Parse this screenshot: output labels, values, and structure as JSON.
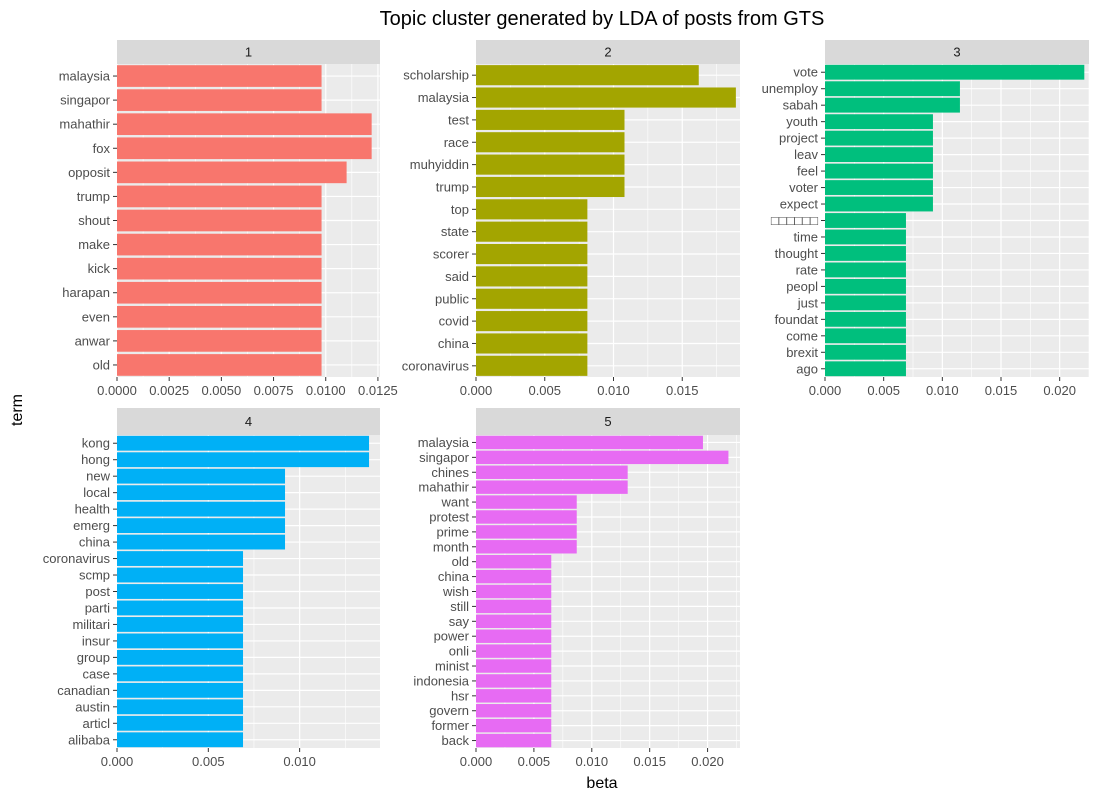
{
  "chart_data": {
    "type": "bar",
    "orientation": "horizontal",
    "title": "Topic cluster generated by LDA of posts from GTS",
    "xlabel": "beta",
    "ylabel": "term",
    "grid": true,
    "facets": [
      {
        "strip": "1",
        "color": "#F8766D",
        "xlim": [
          0,
          0.0126
        ],
        "ticks": [
          0,
          0.0025,
          0.005,
          0.0075,
          0.01,
          0.0125
        ],
        "tick_labels": [
          "0.0000",
          "0.0025",
          "0.0050",
          "0.0075",
          "0.0100",
          "0.0125"
        ],
        "terms": [
          "malaysia",
          "singapor",
          "mahathir",
          "fox",
          "opposit",
          "trump",
          "shout",
          "make",
          "kick",
          "harapan",
          "even",
          "anwar",
          "old"
        ],
        "values": [
          0.0098,
          0.0098,
          0.0122,
          0.0122,
          0.011,
          0.0098,
          0.0098,
          0.0098,
          0.0098,
          0.0098,
          0.0098,
          0.0098,
          0.0098
        ]
      },
      {
        "strip": "2",
        "color": "#A3A500",
        "xlim": [
          0,
          0.0192
        ],
        "ticks": [
          0,
          0.005,
          0.01,
          0.015
        ],
        "tick_labels": [
          "0.000",
          "0.005",
          "0.010",
          "0.015"
        ],
        "terms": [
          "scholarship",
          "malaysia",
          "test",
          "race",
          "muhyiddin",
          "trump",
          "top",
          "state",
          "scorer",
          "said",
          "public",
          "covid",
          "china",
          "coronavirus"
        ],
        "values": [
          0.0162,
          0.0189,
          0.0108,
          0.0108,
          0.0108,
          0.0108,
          0.0081,
          0.0081,
          0.0081,
          0.0081,
          0.0081,
          0.0081,
          0.0081,
          0.0081
        ]
      },
      {
        "strip": "3",
        "color": "#00BF7D",
        "xlim": [
          0,
          0.0225
        ],
        "ticks": [
          0,
          0.005,
          0.01,
          0.015,
          0.02
        ],
        "tick_labels": [
          "0.000",
          "0.005",
          "0.010",
          "0.015",
          "0.020"
        ],
        "terms": [
          "vote",
          "unemploy",
          "sabah",
          "youth",
          "project",
          "leav",
          "feel",
          "voter",
          "expect",
          "□□□□□□",
          "time",
          "thought",
          "rate",
          "peopl",
          "just",
          "foundat",
          "come",
          "brexit",
          "ago"
        ],
        "values": [
          0.0221,
          0.0115,
          0.0115,
          0.0092,
          0.0092,
          0.0092,
          0.0092,
          0.0092,
          0.0092,
          0.0069,
          0.0069,
          0.0069,
          0.0069,
          0.0069,
          0.0069,
          0.0069,
          0.0069,
          0.0069,
          0.0069
        ]
      },
      {
        "strip": "4",
        "color": "#00B0F6",
        "xlim": [
          0,
          0.0144
        ],
        "ticks": [
          0,
          0.005,
          0.01
        ],
        "tick_labels": [
          "0.000",
          "0.005",
          "0.010"
        ],
        "terms": [
          "kong",
          "hong",
          "new",
          "local",
          "health",
          "emerg",
          "china",
          "coronavirus",
          "scmp",
          "post",
          "parti",
          "militari",
          "insur",
          "group",
          "case",
          "canadian",
          "austin",
          "articl",
          "alibaba"
        ],
        "values": [
          0.0138,
          0.0138,
          0.0092,
          0.0092,
          0.0092,
          0.0092,
          0.0092,
          0.0069,
          0.0069,
          0.0069,
          0.0069,
          0.0069,
          0.0069,
          0.0069,
          0.0069,
          0.0069,
          0.0069,
          0.0069,
          0.0069
        ]
      },
      {
        "strip": "5",
        "color": "#E76BF3",
        "xlim": [
          0,
          0.0228
        ],
        "ticks": [
          0,
          0.005,
          0.01,
          0.015,
          0.02
        ],
        "tick_labels": [
          "0.000",
          "0.005",
          "0.010",
          "0.015",
          "0.020"
        ],
        "terms": [
          "malaysia",
          "singapor",
          "chines",
          "mahathir",
          "want",
          "protest",
          "prime",
          "month",
          "old",
          "china",
          "wish",
          "still",
          "say",
          "power",
          "onli",
          "minist",
          "indonesia",
          "hsr",
          "govern",
          "former",
          "back"
        ],
        "values": [
          0.0196,
          0.0218,
          0.0131,
          0.0131,
          0.0087,
          0.0087,
          0.0087,
          0.0087,
          0.0065,
          0.0065,
          0.0065,
          0.0065,
          0.0065,
          0.0065,
          0.0065,
          0.0065,
          0.0065,
          0.0065,
          0.0065,
          0.0065,
          0.0065
        ]
      }
    ]
  }
}
